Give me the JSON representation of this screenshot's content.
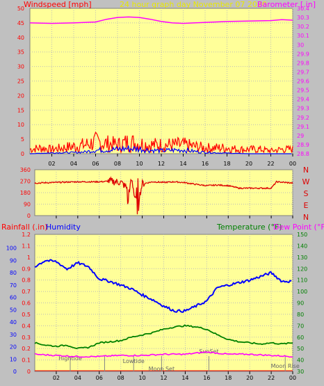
{
  "header": {
    "windspeed_label": "Windspeed [mph]",
    "title": "24 hour graph day   November 07 2020",
    "barometer_label": "Barometer [.in]"
  },
  "bottom_header": {
    "rainfall_label": "Rainfall (.in)",
    "humidity_label": "Humidity",
    "temperature_label": "Temperature (°F)",
    "dewpoint_label": "Dew Point (°F)"
  },
  "colors": {
    "background": "#c0c0c0",
    "plot_bg": "#ffff99",
    "wind": "#ff0000",
    "gust": "#0000ff",
    "barometer": "#ff00ff",
    "title": "#e8e800",
    "humidity": "#0000ff",
    "temperature": "#008000",
    "dewpoint": "#ff00ff",
    "direction": "#dd0000",
    "rain": "#ff0000",
    "grid": "#bbbbbb"
  },
  "chart_data": [
    {
      "type": "line",
      "title": "24 hour graph day   November 07 2020",
      "ylabel": "Windspeed [mph]",
      "y2label": "Barometer [.in]",
      "ylim": [
        0,
        50
      ],
      "yticks": [
        "0",
        "5",
        "10",
        "15",
        "20",
        "25",
        "30",
        "35",
        "40",
        "45",
        "50"
      ],
      "y2lim": [
        28.8,
        30.4
      ],
      "y2ticks": [
        "28.8",
        "28.9",
        "29",
        "29.1",
        "29.2",
        "29.3",
        "29.4",
        "29.5",
        "29.6",
        "29.7",
        "29.8",
        "29.9",
        "30",
        "30.1",
        "30.2",
        "30.3",
        "30.4"
      ],
      "xticks": [
        "02",
        "04",
        "06",
        "08",
        "10",
        "12",
        "14",
        "16",
        "18",
        "20",
        "22",
        "00"
      ],
      "grid": true,
      "series": [
        {
          "name": "Barometer [.in]",
          "axis": "right",
          "x": [
            0,
            2,
            4,
            6,
            7,
            8,
            9,
            10,
            11,
            12,
            13,
            14,
            15,
            16,
            18,
            20,
            22,
            23,
            24
          ],
          "values": [
            30.24,
            30.235,
            30.24,
            30.25,
            30.28,
            30.3,
            30.305,
            30.3,
            30.28,
            30.255,
            30.24,
            30.235,
            30.24,
            30.245,
            30.255,
            30.26,
            30.265,
            30.275,
            30.27
          ]
        },
        {
          "name": "Windspeed [mph]",
          "axis": "left",
          "x": [
            0,
            1,
            2,
            3,
            4,
            5,
            6,
            7,
            8,
            9,
            10,
            11,
            12,
            13,
            14,
            15,
            16,
            17,
            18,
            19,
            20,
            21,
            22,
            23,
            24
          ],
          "values": [
            1.5,
            2,
            1.5,
            2,
            2.5,
            3,
            4,
            3.5,
            3,
            4,
            3.5,
            3,
            3,
            3,
            3,
            2.5,
            2,
            2,
            2,
            1.5,
            1.5,
            1.5,
            1,
            1.5,
            1.5
          ]
        },
        {
          "name": "Gust",
          "axis": "left",
          "x": [
            0,
            2,
            4,
            5,
            6,
            7,
            8,
            9,
            10,
            11,
            12,
            13,
            14,
            15,
            16,
            17,
            18,
            20,
            22,
            24
          ],
          "values": [
            0,
            0.3,
            0.4,
            0.6,
            1.2,
            1.3,
            1.5,
            1.8,
            1.6,
            1.2,
            1,
            1.2,
            1.3,
            0.8,
            0.5,
            0.3,
            0.2,
            0,
            0,
            0
          ]
        }
      ]
    },
    {
      "type": "line",
      "ylabel": "Wind direction",
      "ylim": [
        0,
        360
      ],
      "yticks": [
        "0",
        "90",
        "180",
        "270",
        "360"
      ],
      "xticks": [
        "02",
        "04",
        "06",
        "08",
        "10",
        "12",
        "14",
        "16",
        "18",
        "20",
        "22",
        "00"
      ],
      "compass_labels": [
        "N",
        "W",
        "S",
        "E",
        "N"
      ],
      "grid": true,
      "series": [
        {
          "name": "Direction",
          "x": [
            0,
            2,
            4,
            6,
            7,
            8,
            8.8,
            9,
            9.5,
            10,
            11,
            12,
            13,
            14,
            15,
            16,
            17,
            18,
            19,
            20,
            21,
            22,
            22.5,
            24
          ],
          "values": [
            255,
            260,
            265,
            265,
            270,
            262,
            200,
            280,
            60,
            250,
            265,
            260,
            265,
            258,
            245,
            235,
            240,
            235,
            215,
            215,
            215,
            215,
            265,
            255
          ]
        }
      ]
    },
    {
      "type": "line",
      "ylabel": "Rainfall (.in)",
      "y2label": "Temperature (°F)",
      "ylim": [
        0,
        1.2
      ],
      "yticks": [
        "0",
        "0.1",
        "0.2",
        "0.3",
        "0.4",
        "0.5",
        "0.6",
        "0.7",
        "0.8",
        "0.9",
        "1",
        "1.1",
        "1.2"
      ],
      "humidity_ticks": [
        "0",
        "10",
        "20",
        "30",
        "40",
        "50",
        "60",
        "70",
        "80",
        "90",
        "100"
      ],
      "y2lim": [
        30,
        150
      ],
      "y2ticks": [
        "30",
        "40",
        "50",
        "60",
        "70",
        "80",
        "90",
        "100",
        "110",
        "120",
        "130",
        "140",
        "150"
      ],
      "xticks": [
        "02",
        "04",
        "06",
        "08",
        "10",
        "12",
        "14",
        "16",
        "18",
        "20",
        "22",
        "00"
      ],
      "annotations": [
        "Hightide",
        "Lowtide",
        "Moon Set",
        "SunSet",
        "Moon Rise"
      ],
      "grid": true,
      "series": [
        {
          "name": "Humidity",
          "axis": "humidity",
          "x": [
            0,
            1,
            2,
            3,
            4,
            5,
            6,
            7,
            8,
            9,
            10,
            11,
            12,
            13,
            14,
            15,
            16,
            17,
            18,
            19,
            20,
            21,
            22,
            23,
            24
          ],
          "values": [
            85,
            90,
            89,
            83,
            88,
            85,
            75,
            73,
            70,
            67,
            62,
            58,
            53,
            49,
            49,
            53,
            57,
            68,
            70,
            72,
            74,
            77,
            80,
            73,
            73
          ]
        },
        {
          "name": "Temperature (°F)",
          "axis": "right",
          "x": [
            0,
            1,
            2,
            3,
            4,
            5,
            6,
            7,
            8,
            9,
            10,
            11,
            12,
            13,
            14,
            15,
            16,
            17,
            18,
            19,
            20,
            21,
            22,
            23,
            24
          ],
          "values": [
            55,
            53,
            52,
            53,
            50,
            51,
            55,
            56,
            57,
            60,
            62,
            64,
            67,
            69,
            70,
            69,
            67,
            62,
            58,
            56,
            55,
            54,
            55,
            54,
            55
          ]
        },
        {
          "name": "Dew Point (°F)",
          "axis": "right",
          "x": [
            0,
            2,
            4,
            6,
            8,
            10,
            12,
            14,
            16,
            18,
            20,
            22,
            24
          ],
          "values": [
            45,
            44,
            43,
            43,
            44,
            44,
            45,
            45,
            47,
            45,
            45,
            44,
            43
          ]
        }
      ]
    }
  ]
}
